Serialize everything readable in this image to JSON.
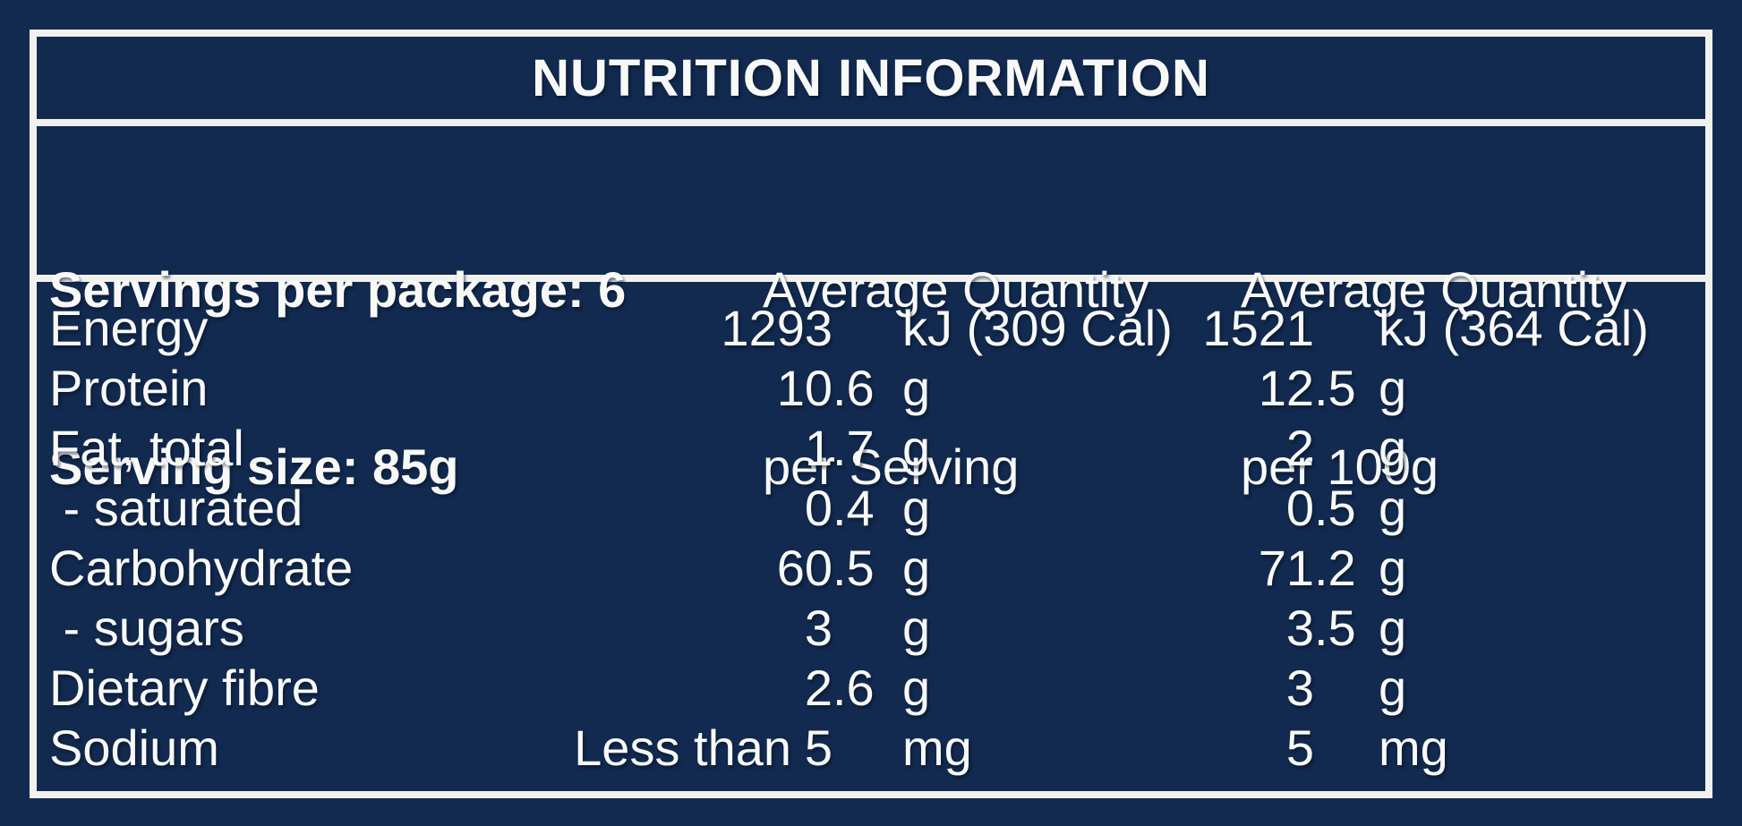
{
  "colors": {
    "background": "#122a4f",
    "text": "#f8f9f6",
    "rule_lines": "#f1f2ee"
  },
  "title": "NUTRITION INFORMATION",
  "package_info": {
    "servings_line": "Servings per package: 6",
    "serving_size_line": "Serving size: 85g"
  },
  "columns": {
    "per_serving": {
      "line1": "Average Quantity",
      "line2": "per Serving"
    },
    "per_100g": {
      "line1": "Average Quantity",
      "line2": "per 100g"
    }
  },
  "rows": [
    {
      "label": "Energy",
      "prefix": "",
      "serving": {
        "value": "1293",
        "unit": "kJ (309 Cal)"
      },
      "per_100g": {
        "value": "1521",
        "unit": "kJ (364 Cal)"
      }
    },
    {
      "label": "Protein",
      "prefix": "",
      "serving": {
        "value": "10.6",
        "unit": "g"
      },
      "per_100g": {
        "value": "12.5",
        "unit": "g"
      }
    },
    {
      "label": "Fat, total",
      "prefix": "",
      "serving": {
        "value": "1.7",
        "unit": "g"
      },
      "per_100g": {
        "value": "2",
        "unit": "g"
      }
    },
    {
      "label": " - saturated",
      "prefix": "",
      "serving": {
        "value": "0.4",
        "unit": "g"
      },
      "per_100g": {
        "value": "0.5",
        "unit": "g"
      }
    },
    {
      "label": "Carbohydrate",
      "prefix": "",
      "serving": {
        "value": "60.5",
        "unit": "g"
      },
      "per_100g": {
        "value": "71.2",
        "unit": "g"
      }
    },
    {
      "label": " - sugars",
      "prefix": "",
      "serving": {
        "value": "3",
        "unit": "g"
      },
      "per_100g": {
        "value": "3.5",
        "unit": "g"
      }
    },
    {
      "label": "Dietary fibre",
      "prefix": "",
      "serving": {
        "value": "2.6",
        "unit": "g"
      },
      "per_100g": {
        "value": "3",
        "unit": "g"
      }
    },
    {
      "label": "Sodium",
      "prefix": "Less than",
      "serving": {
        "value": "5",
        "unit": "mg"
      },
      "per_100g": {
        "value": "5",
        "unit": "mg"
      }
    }
  ]
}
